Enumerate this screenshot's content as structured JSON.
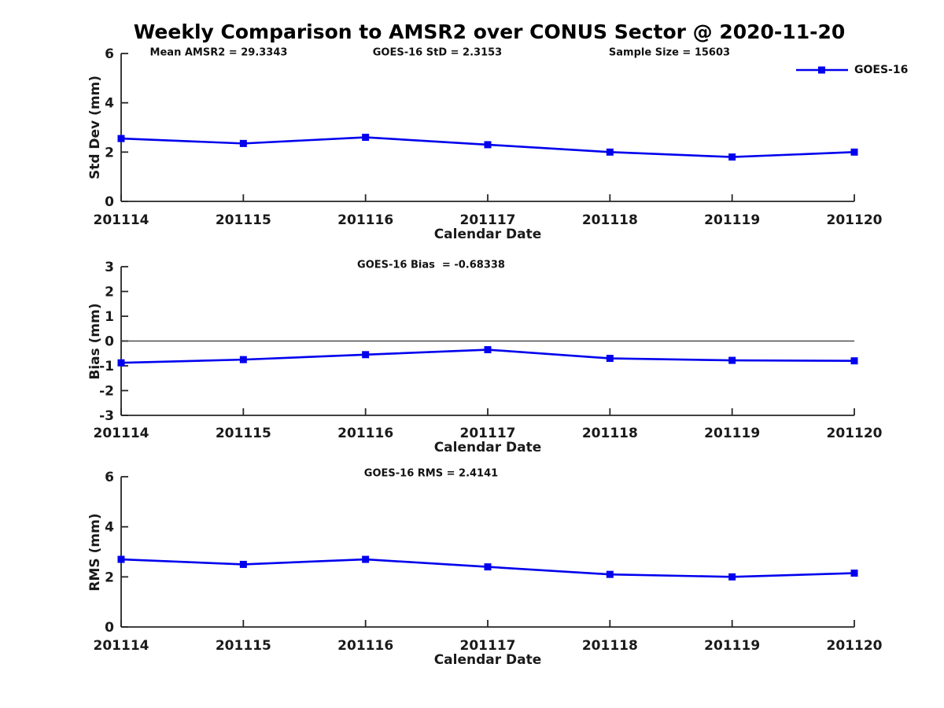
{
  "title": "Weekly Comparison to AMSR2 over CONUS Sector @ 2020-11-20",
  "colors": {
    "line": "#0000EE",
    "axis": "#262626",
    "text": "#1a1a1a",
    "zero_line": "#333333"
  },
  "legend": {
    "label": "GOES-16"
  },
  "chart_data": [
    {
      "type": "line",
      "title": "",
      "annotations": [
        "Mean AMSR2 = 29.3343",
        "GOES-16 StD = 2.3153",
        "Sample Size = 15603"
      ],
      "xlabel": "Calendar Date",
      "ylabel": "Std Dev (mm)",
      "categories": [
        "201114",
        "201115",
        "201116",
        "201117",
        "201118",
        "201119",
        "201120"
      ],
      "series": [
        {
          "name": "GOES-16",
          "values": [
            2.55,
            2.35,
            2.6,
            2.3,
            2.0,
            1.8,
            2.0
          ]
        }
      ],
      "ylim": [
        0,
        6
      ],
      "yticks": [
        0,
        2,
        4,
        6
      ],
      "grid": false,
      "legend_position": "top-right"
    },
    {
      "type": "line",
      "title": "GOES-16 Bias  = -0.68338",
      "xlabel": "Calendar Date",
      "ylabel": "Bias (mm)",
      "categories": [
        "201114",
        "201115",
        "201116",
        "201117",
        "201118",
        "201119",
        "201120"
      ],
      "series": [
        {
          "name": "GOES-16",
          "values": [
            -0.88,
            -0.75,
            -0.55,
            -0.35,
            -0.7,
            -0.78,
            -0.8
          ]
        }
      ],
      "ylim": [
        -3,
        3
      ],
      "yticks": [
        -3,
        -2,
        -1,
        0,
        1,
        2,
        3
      ],
      "hline": 0,
      "grid": false
    },
    {
      "type": "line",
      "title": "GOES-16 RMS = 2.4141",
      "xlabel": "Calendar Date",
      "ylabel": "RMS (mm)",
      "categories": [
        "201114",
        "201115",
        "201116",
        "201117",
        "201118",
        "201119",
        "201120"
      ],
      "series": [
        {
          "name": "GOES-16",
          "values": [
            2.7,
            2.5,
            2.7,
            2.4,
            2.1,
            2.0,
            2.15
          ]
        }
      ],
      "ylim": [
        0,
        6
      ],
      "yticks": [
        0,
        2,
        4,
        6
      ],
      "grid": false
    }
  ]
}
